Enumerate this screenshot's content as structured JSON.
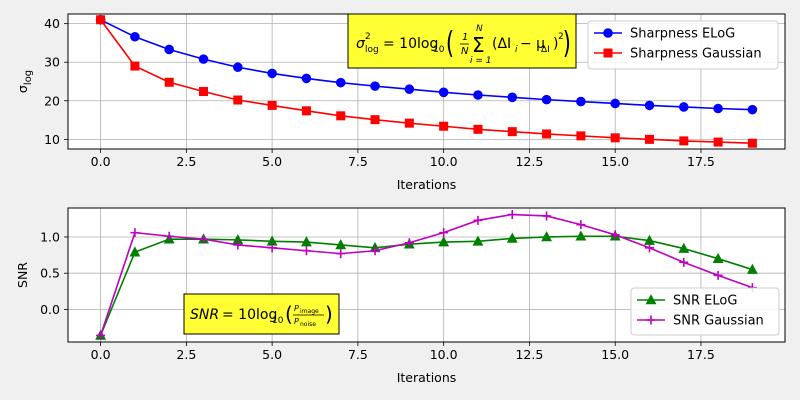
{
  "chart_data": [
    {
      "type": "line",
      "xlabel": "Iterations",
      "ylabel": "σ_log",
      "xlim": [
        -0.95,
        19.95
      ],
      "ylim": [
        7.5,
        42.5
      ],
      "xticks": [
        0.0,
        2.5,
        5.0,
        7.5,
        10.0,
        12.5,
        15.0,
        17.5
      ],
      "xtick_labels": [
        "0.0",
        "2.5",
        "5.0",
        "7.5",
        "10.0",
        "12.5",
        "15.0",
        "17.5"
      ],
      "yticks": [
        10,
        20,
        30,
        40
      ],
      "ytick_labels": [
        "10",
        "20",
        "30",
        "40"
      ],
      "grid": true,
      "legend": "upper right",
      "x": [
        0,
        1,
        2,
        3,
        4,
        5,
        6,
        7,
        8,
        9,
        10,
        11,
        12,
        13,
        14,
        15,
        16,
        17,
        18,
        19
      ],
      "series": [
        {
          "name": "Sharpness ELoG",
          "color": "#0000ff",
          "marker": "circle",
          "values": [
            41.0,
            36.6,
            33.3,
            30.8,
            28.7,
            27.1,
            25.8,
            24.7,
            23.8,
            23.0,
            22.2,
            21.5,
            20.9,
            20.3,
            19.8,
            19.3,
            18.8,
            18.4,
            18.0,
            17.7
          ]
        },
        {
          "name": "Sharpness Gaussian",
          "color": "#ff0000",
          "marker": "square",
          "values": [
            41.0,
            29.0,
            24.8,
            22.4,
            20.2,
            18.8,
            17.4,
            16.1,
            15.1,
            14.2,
            13.4,
            12.6,
            12.0,
            11.4,
            10.9,
            10.4,
            10.0,
            9.6,
            9.3,
            9.0
          ]
        }
      ],
      "annotation": {
        "text": "σ²_log = 10 log10 ( 1/N Σ_{i=1}^{N} (ΔI_i − μ_ΔI)² )",
        "background": "#ffff33"
      }
    },
    {
      "type": "line",
      "xlabel": "Iterations",
      "ylabel": "SNR",
      "xlim": [
        -0.95,
        19.95
      ],
      "ylim": [
        -0.45,
        1.4
      ],
      "xticks": [
        0.0,
        2.5,
        5.0,
        7.5,
        10.0,
        12.5,
        15.0,
        17.5
      ],
      "xtick_labels": [
        "0.0",
        "2.5",
        "5.0",
        "7.5",
        "10.0",
        "12.5",
        "15.0",
        "17.5"
      ],
      "yticks": [
        0.0,
        0.5,
        1.0
      ],
      "ytick_labels": [
        "0.0",
        "0.5",
        "1.0"
      ],
      "grid": true,
      "legend": "lower right",
      "x": [
        0,
        1,
        2,
        3,
        4,
        5,
        6,
        7,
        8,
        9,
        10,
        11,
        12,
        13,
        14,
        15,
        16,
        17,
        18,
        19
      ],
      "series": [
        {
          "name": "SNR ELoG",
          "color": "#008000",
          "marker": "triangle",
          "values": [
            -0.36,
            0.79,
            0.97,
            0.97,
            0.96,
            0.94,
            0.93,
            0.89,
            0.85,
            0.9,
            0.93,
            0.94,
            0.98,
            1.0,
            1.01,
            1.01,
            0.95,
            0.84,
            0.7,
            0.55
          ]
        },
        {
          "name": "SNR Gaussian",
          "color": "#bf00bf",
          "marker": "plus",
          "values": [
            -0.36,
            1.06,
            1.01,
            0.97,
            0.89,
            0.85,
            0.81,
            0.77,
            0.81,
            0.92,
            1.06,
            1.23,
            1.31,
            1.29,
            1.17,
            1.03,
            0.85,
            0.65,
            0.47,
            0.3
          ]
        }
      ],
      "annotation": {
        "text": "SNR = 10 log10 ( P_image / P_noise )",
        "background": "#ffff33"
      }
    }
  ]
}
